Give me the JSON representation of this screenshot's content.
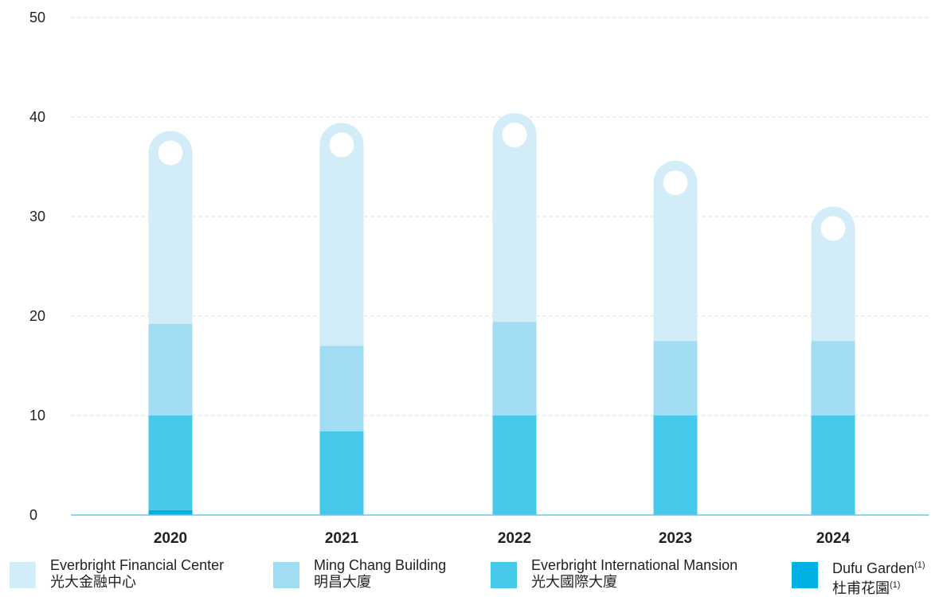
{
  "chart_data": {
    "type": "bar",
    "stacked": true,
    "categories": [
      "2020",
      "2021",
      "2022",
      "2023",
      "2024"
    ],
    "series": [
      {
        "name": "Dufu Garden(1) 杜甫花園(1)",
        "color": "#00b2e3",
        "values": [
          0.5,
          0,
          0,
          0,
          0
        ]
      },
      {
        "name": "Everbright International Mansion 光大國際大廈",
        "color": "#45c8ea",
        "values": [
          9.5,
          8.4,
          10.0,
          10.0,
          10.0
        ]
      },
      {
        "name": "Ming Chang Building 明昌大廈",
        "color": "#a0dcf2",
        "values": [
          9.2,
          8.6,
          9.4,
          7.5,
          7.5
        ]
      },
      {
        "name": "Everbright Financial Center 光大金融中心",
        "color": "#d2ecf8",
        "values": [
          19.4,
          22.4,
          21.0,
          18.1,
          13.5
        ]
      }
    ],
    "ylim": [
      0,
      50
    ],
    "yticks": [
      0,
      10,
      20,
      30,
      40,
      50
    ],
    "grid": true,
    "legend_position": "bottom"
  },
  "legend": [
    {
      "line1": "Everbright Financial Center",
      "line2": "光大金融中心",
      "sup": "",
      "color": "#d2ecf8"
    },
    {
      "line1": "Ming Chang Building",
      "line2": "明昌大廈",
      "sup": "",
      "color": "#a0dcf2"
    },
    {
      "line1": "Everbright International Mansion",
      "line2": "光大國際大廈",
      "sup": "",
      "color": "#45c8ea"
    },
    {
      "line1": "Dufu Garden",
      "line2": "杜甫花園",
      "sup": "(1)",
      "color": "#00b2e3"
    }
  ]
}
